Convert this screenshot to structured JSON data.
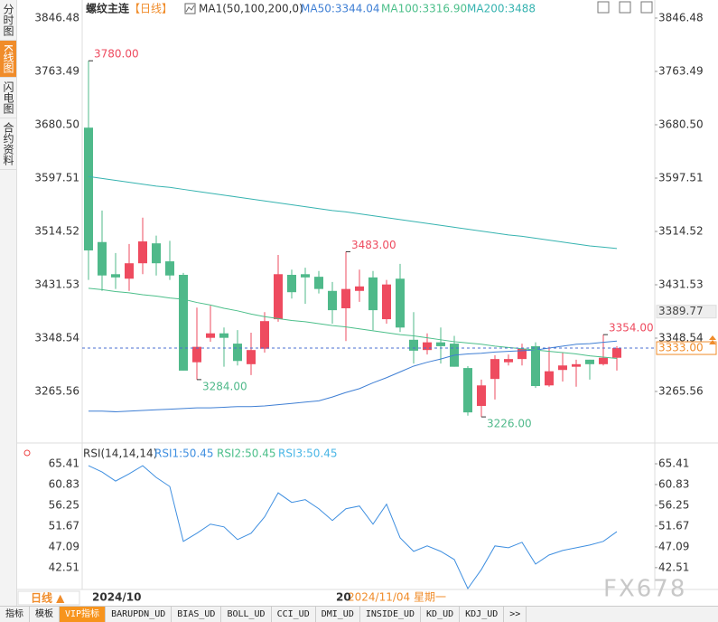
{
  "ui": {
    "sidebar_tabs": [
      "分时图",
      "K线图",
      "闪电图",
      "合约资料"
    ],
    "sidebar_active": 1,
    "tabs": [
      "指标",
      "模板",
      "VIP指标",
      "BARUPDN_UD",
      "BIAS_UD",
      "BOLL_UD",
      "CCI_UD",
      "DMI_UD",
      "INSIDE_UD",
      "KD_UD",
      "KDJ_UD",
      ">>"
    ],
    "tabs_active": 2,
    "period_button": "日线 ▲",
    "cursor_date": "2024/11/04 星期一",
    "watermark": "FX678"
  },
  "chart_data": [
    {
      "type": "candlestick",
      "title": "螺纹主连",
      "period": "【日线】",
      "indicator": "MA1(50,100,200,0)",
      "up_color": "#ee4b5f",
      "down_color": "#4fb98a",
      "categories": [
        "2024/10",
        null,
        null,
        null,
        null,
        null,
        null,
        null,
        null,
        null,
        null,
        null,
        null,
        null,
        null,
        null,
        null,
        null,
        "20",
        null,
        null,
        null,
        null,
        null,
        null,
        null,
        null,
        null,
        null,
        null,
        null,
        null,
        null,
        null,
        null,
        null,
        null,
        null,
        null,
        null
      ],
      "candles": [
        {
          "open": 3676,
          "high": 3780,
          "low": 3439,
          "close": 3485
        },
        {
          "open": 3498,
          "high": 3547,
          "low": 3422,
          "close": 3446
        },
        {
          "open": 3448,
          "high": 3481,
          "low": 3425,
          "close": 3443
        },
        {
          "open": 3441,
          "high": 3495,
          "low": 3422,
          "close": 3465
        },
        {
          "open": 3465,
          "high": 3536,
          "low": 3448,
          "close": 3499
        },
        {
          "open": 3496,
          "high": 3508,
          "low": 3446,
          "close": 3465
        },
        {
          "open": 3468,
          "high": 3500,
          "low": 3439,
          "close": 3446
        },
        {
          "open": 3447,
          "high": 3450,
          "low": 3298,
          "close": 3298
        },
        {
          "open": 3311,
          "high": 3396,
          "low": 3284,
          "close": 3335
        },
        {
          "open": 3349,
          "high": 3399,
          "low": 3343,
          "close": 3356
        },
        {
          "open": 3356,
          "high": 3365,
          "low": 3304,
          "close": 3349
        },
        {
          "open": 3340,
          "high": 3361,
          "low": 3306,
          "close": 3313
        },
        {
          "open": 3308,
          "high": 3357,
          "low": 3291,
          "close": 3330
        },
        {
          "open": 3332,
          "high": 3389,
          "low": 3326,
          "close": 3375
        },
        {
          "open": 3378,
          "high": 3478,
          "low": 3374,
          "close": 3448
        },
        {
          "open": 3447,
          "high": 3455,
          "low": 3410,
          "close": 3420
        },
        {
          "open": 3448,
          "high": 3458,
          "low": 3402,
          "close": 3443
        },
        {
          "open": 3444,
          "high": 3453,
          "low": 3418,
          "close": 3425
        },
        {
          "open": 3422,
          "high": 3436,
          "low": 3371,
          "close": 3392
        },
        {
          "open": 3395,
          "high": 3483,
          "low": 3344,
          "close": 3425
        },
        {
          "open": 3422,
          "high": 3455,
          "low": 3405,
          "close": 3429
        },
        {
          "open": 3443,
          "high": 3453,
          "low": 3361,
          "close": 3392
        },
        {
          "open": 3378,
          "high": 3439,
          "low": 3371,
          "close": 3432
        },
        {
          "open": 3441,
          "high": 3464,
          "low": 3358,
          "close": 3365
        },
        {
          "open": 3346,
          "high": 3389,
          "low": 3309,
          "close": 3329
        },
        {
          "open": 3330,
          "high": 3356,
          "low": 3323,
          "close": 3342
        },
        {
          "open": 3342,
          "high": 3365,
          "low": 3309,
          "close": 3336
        },
        {
          "open": 3340,
          "high": 3352,
          "low": 3304,
          "close": 3304
        },
        {
          "open": 3302,
          "high": 3305,
          "low": 3228,
          "close": 3233
        },
        {
          "open": 3243,
          "high": 3284,
          "low": 3226,
          "close": 3275
        },
        {
          "open": 3285,
          "high": 3322,
          "low": 3253,
          "close": 3316
        },
        {
          "open": 3311,
          "high": 3323,
          "low": 3306,
          "close": 3316
        },
        {
          "open": 3316,
          "high": 3340,
          "low": 3306,
          "close": 3332
        },
        {
          "open": 3336,
          "high": 3342,
          "low": 3271,
          "close": 3274
        },
        {
          "open": 3275,
          "high": 3335,
          "low": 3273,
          "close": 3297
        },
        {
          "open": 3299,
          "high": 3326,
          "low": 3281,
          "close": 3306
        },
        {
          "open": 3304,
          "high": 3315,
          "low": 3273,
          "close": 3308
        },
        {
          "open": 3315,
          "high": 3315,
          "low": 3284,
          "close": 3308
        },
        {
          "open": 3308,
          "high": 3354,
          "low": 3306,
          "close": 3318
        },
        {
          "open": 3318,
          "high": 3336,
          "low": 3298,
          "close": 3333
        }
      ],
      "series": [
        {
          "name": "MA50:3344.04",
          "color": "#3f7fd4",
          "values": [
            3235,
            3235,
            3234,
            3235,
            3236,
            3237,
            3238,
            3239,
            3240,
            3240,
            3241,
            3242,
            3242,
            3243,
            3245,
            3247,
            3249,
            3251,
            3257,
            3264,
            3270,
            3279,
            3287,
            3296,
            3305,
            3311,
            3316,
            3322,
            3324,
            3325,
            3327,
            3328,
            3329,
            3330,
            3333,
            3336,
            3339,
            3340,
            3342,
            3344.04
          ]
        },
        {
          "name": "MA100:3316.90",
          "color": "#4cbf8a",
          "values": [
            3426,
            3424,
            3421,
            3419,
            3416,
            3414,
            3411,
            3409,
            3404,
            3400,
            3395,
            3391,
            3386,
            3382,
            3379,
            3376,
            3374,
            3371,
            3368,
            3366,
            3363,
            3360,
            3357,
            3354,
            3352,
            3349,
            3346,
            3343,
            3341,
            3339,
            3336,
            3334,
            3332,
            3330,
            3328,
            3326,
            3324,
            3321,
            3319,
            3316.9
          ]
        },
        {
          "name": "MA200:3488",
          "color": "#36b3b0",
          "values": [
            3600,
            3597,
            3594,
            3591,
            3588,
            3585,
            3583,
            3580,
            3577,
            3574,
            3571,
            3568,
            3565,
            3562,
            3559,
            3556,
            3553,
            3550,
            3547,
            3545,
            3542,
            3539,
            3536,
            3533,
            3530,
            3527,
            3524,
            3521,
            3518,
            3515,
            3512,
            3509,
            3507,
            3504,
            3501,
            3498,
            3495,
            3492,
            3490,
            3488
          ]
        }
      ],
      "extremes": {
        "values": [
          3780,
          3284,
          3483,
          3226,
          3354
        ],
        "value_labels": [
          "3780.00",
          "3284.00",
          "3483.00",
          "3226.00",
          "3354.00"
        ]
      },
      "last_price": {
        "value": 3333,
        "label": "3333.00",
        "color": "#f08c2a"
      },
      "cursor_price": 3389.77,
      "ylim": [
        3188.2,
        3857.7
      ],
      "yticks": [
        3846.48,
        3763.49,
        {
          "value": 3680.5,
          "label": "3680.50"
        },
        3597.51,
        3514.52,
        3431.53,
        3348.54,
        3265.56
      ]
    },
    {
      "type": "line",
      "title": "RSI(14,14,14)",
      "legend": [
        {
          "name": "RSI1:50.45",
          "color": "#3f8fe0"
        },
        {
          "name": "RSI2:50.45",
          "color": "#4cbf8a"
        },
        {
          "name": "RSI3:50.45",
          "color": "#49b6e6"
        }
      ],
      "color": "#3f8fe0",
      "values": [
        65.0,
        63.6,
        61.6,
        63.2,
        65.0,
        62.4,
        60.4,
        48.3,
        50.1,
        52.1,
        51.5,
        48.7,
        50.1,
        53.7,
        59.0,
        56.9,
        57.5,
        55.5,
        52.9,
        55.5,
        56.1,
        52.1,
        56.5,
        49.1,
        46.1,
        47.3,
        46.1,
        44.3,
        37.9,
        42.1,
        47.3,
        46.9,
        48.1,
        43.3,
        45.3,
        46.3,
        46.9,
        47.5,
        48.3,
        50.45
      ],
      "ylim": [
        37.7,
        69.0
      ],
      "yticks": [
        65.41,
        60.83,
        56.25,
        51.67,
        47.09,
        42.51
      ]
    }
  ]
}
